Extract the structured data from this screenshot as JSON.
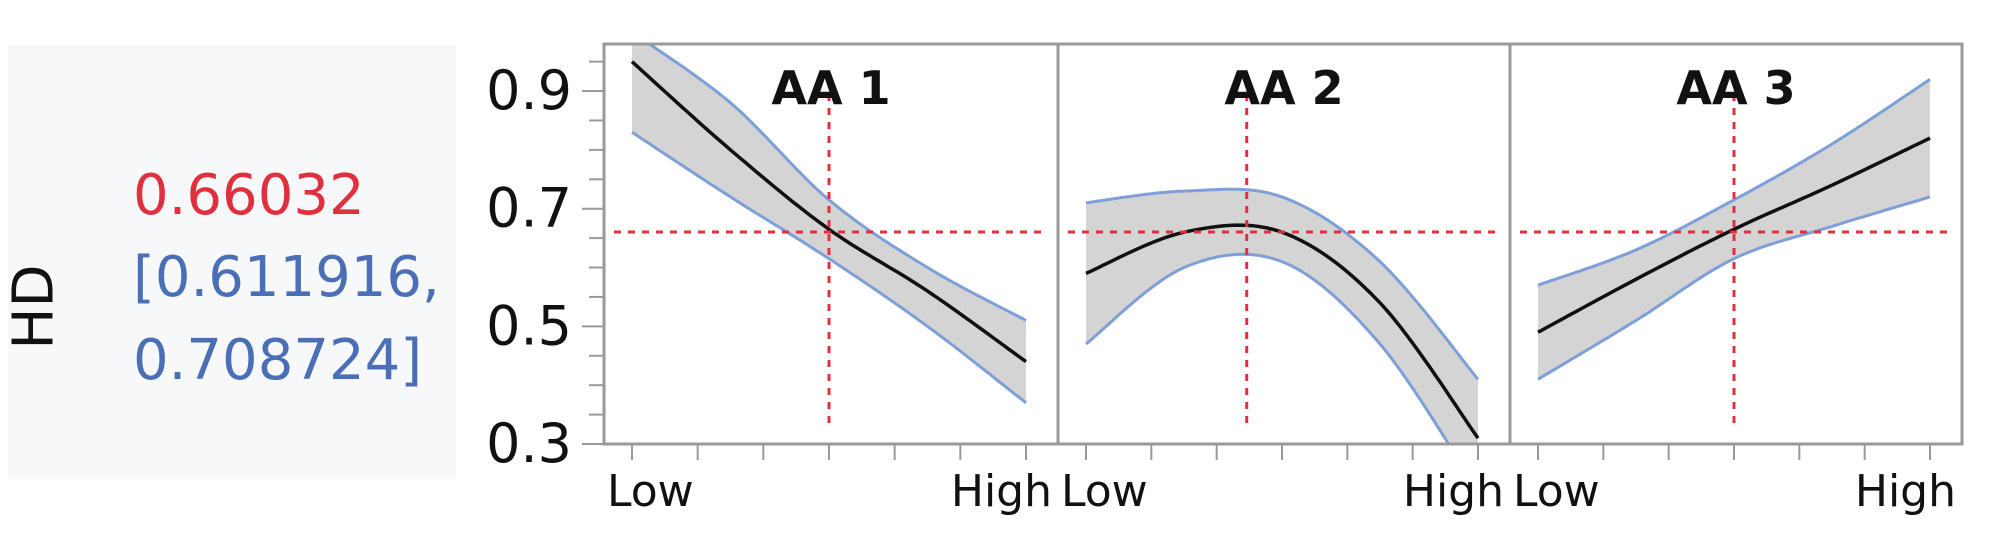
{
  "colors": {
    "prediction": "#e0303e",
    "interval": "#4a6fb7",
    "curve": "#111111",
    "band_fill": "#d4d4d4",
    "band_edge": "#7f9fd9",
    "reference": "#e0303e",
    "frame": "#9a9a9a"
  },
  "response": {
    "label": "HD",
    "prediction": "0.66032",
    "interval_line1": "[0.611916,",
    "interval_line2": "0.708724]"
  },
  "chart_data": {
    "type": "line",
    "ylabel": "HD",
    "ylim": [
      0.3,
      0.98
    ],
    "yticks": [
      0.3,
      0.5,
      0.7,
      0.9
    ],
    "y_tick_labels": [
      "0.3",
      "0.5",
      "0.7",
      "0.9"
    ],
    "reference_y": 0.66032,
    "panels": [
      {
        "title": "AA 1",
        "x_tick_labels": [
          "Low",
          "High"
        ],
        "reference_x": 0.5,
        "x": [
          0,
          0.25,
          0.5,
          0.75,
          1
        ],
        "y": [
          0.95,
          0.8,
          0.665,
          0.56,
          0.44
        ],
        "lower": [
          0.83,
          0.72,
          0.615,
          0.5,
          0.37
        ],
        "upper": [
          1.0,
          0.88,
          0.715,
          0.6,
          0.51
        ]
      },
      {
        "title": "AA 2",
        "x_tick_labels": [
          "Low",
          "High"
        ],
        "reference_x": 0.41,
        "x": [
          0,
          0.25,
          0.5,
          0.75,
          1
        ],
        "y": [
          0.59,
          0.66,
          0.66,
          0.54,
          0.31
        ],
        "lower": [
          0.47,
          0.6,
          0.61,
          0.47,
          0.22
        ],
        "upper": [
          0.71,
          0.73,
          0.72,
          0.61,
          0.41
        ]
      },
      {
        "title": "AA 3",
        "x_tick_labels": [
          "Low",
          "High"
        ],
        "reference_x": 0.5,
        "x": [
          0,
          0.25,
          0.5,
          0.75,
          1
        ],
        "y": [
          0.49,
          0.58,
          0.665,
          0.74,
          0.82
        ],
        "lower": [
          0.41,
          0.51,
          0.615,
          0.67,
          0.72
        ],
        "upper": [
          0.57,
          0.63,
          0.715,
          0.81,
          0.92
        ]
      }
    ]
  }
}
